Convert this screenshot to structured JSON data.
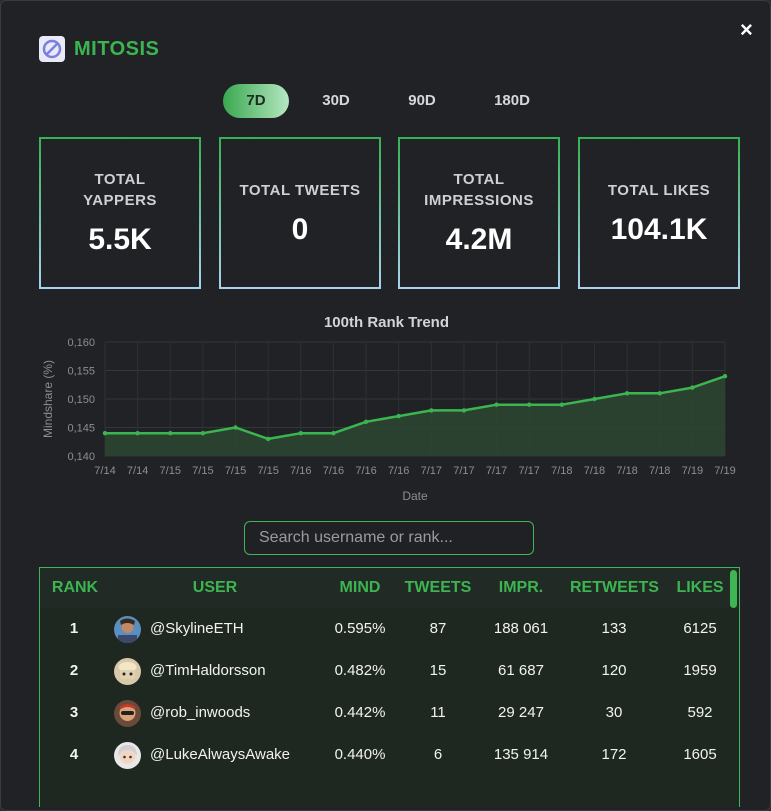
{
  "brand": {
    "name": "MITOSIS",
    "icon": "mitosis-logo-icon"
  },
  "close_label": "×",
  "tabs": [
    {
      "label": "7D",
      "active": true
    },
    {
      "label": "30D",
      "active": false
    },
    {
      "label": "90D",
      "active": false
    },
    {
      "label": "180D",
      "active": false
    }
  ],
  "stats": [
    {
      "label": "TOTAL YAPPERS",
      "value": "5.5K"
    },
    {
      "label": "TOTAL TWEETS",
      "value": "0"
    },
    {
      "label": "TOTAL IMPRESSIONS",
      "value": "4.2M"
    },
    {
      "label": "TOTAL LIKES",
      "value": "104.1K"
    }
  ],
  "chart_data": {
    "type": "area",
    "title": "100th Rank Trend",
    "xlabel": "Date",
    "ylabel": "Mindshare (%)",
    "ylim": [
      0.14,
      0.16
    ],
    "yticks": [
      "0,140",
      "0,145",
      "0,150",
      "0,155",
      "0,160"
    ],
    "categories": [
      "7/14",
      "7/14",
      "7/15",
      "7/15",
      "7/15",
      "7/15",
      "7/16",
      "7/16",
      "7/16",
      "7/16",
      "7/17",
      "7/17",
      "7/17",
      "7/17",
      "7/18",
      "7/18",
      "7/18",
      "7/18",
      "7/19",
      "7/19"
    ],
    "series": [
      {
        "values": [
          0.144,
          0.144,
          0.144,
          0.144,
          0.145,
          0.143,
          0.144,
          0.144,
          0.146,
          0.147,
          0.148,
          0.148,
          0.149,
          0.149,
          0.149,
          0.15,
          0.151,
          0.151,
          0.152,
          0.154
        ]
      }
    ],
    "grid": true,
    "colors": {
      "line": "#3cb551",
      "fill": "#2b4632"
    }
  },
  "search": {
    "placeholder": "Search username or rank..."
  },
  "table": {
    "headers": [
      "RANK",
      "USER",
      "MIND",
      "TWEETS",
      "IMPR.",
      "RETWEETS",
      "LIKES"
    ],
    "rows": [
      {
        "rank": "1",
        "user": "@SkylineETH",
        "mind": "0.595%",
        "tweets": "87",
        "impr": "188 061",
        "retweets": "133",
        "likes": "6125"
      },
      {
        "rank": "2",
        "user": "@TimHaldorsson",
        "mind": "0.482%",
        "tweets": "15",
        "impr": "61 687",
        "retweets": "120",
        "likes": "1959"
      },
      {
        "rank": "3",
        "user": "@rob_inwoods",
        "mind": "0.442%",
        "tweets": "11",
        "impr": "29 247",
        "retweets": "30",
        "likes": "592"
      },
      {
        "rank": "4",
        "user": "@LukeAlwaysAwake",
        "mind": "0.440%",
        "tweets": "6",
        "impr": "135 914",
        "retweets": "172",
        "likes": "1605"
      }
    ]
  },
  "colors": {
    "accent": "#3cb551",
    "background": "#212226"
  }
}
